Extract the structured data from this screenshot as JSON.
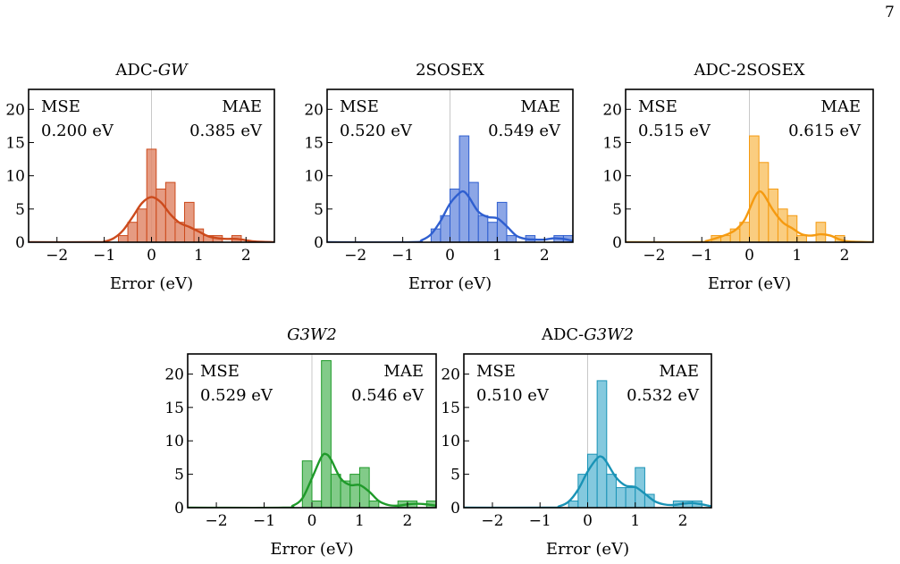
{
  "page_number": "7",
  "chart_data": [
    {
      "type": "histogram",
      "title": "ADC-GW",
      "title_parts": [
        {
          "text": "ADC-",
          "italic": false
        },
        {
          "text": "GW",
          "italic": true
        }
      ],
      "color": "#cc4a1c",
      "fill": "#e08a6c",
      "xlabel": "Error (eV)",
      "xlim": [
        -2.6,
        2.6
      ],
      "ylim": [
        0,
        23
      ],
      "xticks": [
        -2,
        -1,
        0,
        1,
        2
      ],
      "yticks": [
        0,
        5,
        10,
        15,
        20
      ],
      "xtick_labels": [
        "−2",
        "−1",
        "0",
        "1",
        "2"
      ],
      "ytick_labels": [
        "0",
        "5",
        "10",
        "15",
        "20"
      ],
      "mse_label": "MSE",
      "mse_value": "0.200 eV",
      "mae_label": "MAE",
      "mae_value": "0.385 eV",
      "bins": [
        {
          "x0": -0.7,
          "x1": -0.5,
          "count": 1
        },
        {
          "x0": -0.5,
          "x1": -0.3,
          "count": 3
        },
        {
          "x0": -0.3,
          "x1": -0.1,
          "count": 5
        },
        {
          "x0": -0.1,
          "x1": 0.1,
          "count": 14
        },
        {
          "x0": 0.1,
          "x1": 0.3,
          "count": 8
        },
        {
          "x0": 0.3,
          "x1": 0.5,
          "count": 9
        },
        {
          "x0": 0.5,
          "x1": 0.7,
          "count": 3
        },
        {
          "x0": 0.7,
          "x1": 0.9,
          "count": 6
        },
        {
          "x0": 0.9,
          "x1": 1.1,
          "count": 2
        },
        {
          "x0": 1.1,
          "x1": 1.3,
          "count": 1
        },
        {
          "x0": 1.3,
          "x1": 1.5,
          "count": 1
        },
        {
          "x0": 1.7,
          "x1": 1.9,
          "count": 1
        }
      ],
      "kde": {
        "x": [
          -2.6,
          -1.2,
          -1.0,
          -0.8,
          -0.6,
          -0.4,
          -0.2,
          0.0,
          0.2,
          0.4,
          0.6,
          0.8,
          1.0,
          1.2,
          1.4,
          1.6,
          1.8,
          2.0,
          2.2,
          2.6
        ],
        "y": [
          0,
          0,
          0.1,
          0.6,
          1.8,
          3.8,
          5.9,
          6.8,
          6.0,
          4.2,
          2.9,
          2.3,
          1.6,
          0.9,
          0.6,
          0.5,
          0.5,
          0.3,
          0.1,
          0
        ]
      }
    },
    {
      "type": "histogram",
      "title": "2SOSEX",
      "title_parts": [
        {
          "text": "2SOSEX",
          "italic": false
        }
      ],
      "color": "#2f5fd0",
      "fill": "#7897e2",
      "xlabel": "Error (eV)",
      "xlim": [
        -2.6,
        2.6
      ],
      "ylim": [
        0,
        23
      ],
      "xticks": [
        -2,
        -1,
        0,
        1,
        2
      ],
      "yticks": [
        0,
        5,
        10,
        15,
        20
      ],
      "xtick_labels": [
        "−2",
        "−1",
        "0",
        "1",
        "2"
      ],
      "ytick_labels": [
        "0",
        "5",
        "10",
        "15",
        "20"
      ],
      "mse_label": "MSE",
      "mse_value": "0.520 eV",
      "mae_label": "MAE",
      "mae_value": "0.549 eV",
      "bins": [
        {
          "x0": -0.4,
          "x1": -0.2,
          "count": 2
        },
        {
          "x0": -0.2,
          "x1": 0.0,
          "count": 4
        },
        {
          "x0": 0.0,
          "x1": 0.2,
          "count": 8
        },
        {
          "x0": 0.2,
          "x1": 0.4,
          "count": 16
        },
        {
          "x0": 0.4,
          "x1": 0.6,
          "count": 9
        },
        {
          "x0": 0.6,
          "x1": 0.8,
          "count": 4
        },
        {
          "x0": 0.8,
          "x1": 1.0,
          "count": 3
        },
        {
          "x0": 1.0,
          "x1": 1.2,
          "count": 6
        },
        {
          "x0": 1.2,
          "x1": 1.4,
          "count": 1
        },
        {
          "x0": 1.6,
          "x1": 1.8,
          "count": 1
        },
        {
          "x0": 2.2,
          "x1": 2.4,
          "count": 1
        },
        {
          "x0": 2.4,
          "x1": 2.6,
          "count": 1
        }
      ],
      "kde": {
        "x": [
          -2.6,
          -0.8,
          -0.6,
          -0.4,
          -0.2,
          0.0,
          0.2,
          0.3,
          0.4,
          0.6,
          0.8,
          1.0,
          1.2,
          1.4,
          1.6,
          1.8,
          2.0,
          2.2,
          2.4,
          2.6
        ],
        "y": [
          0,
          0,
          0.3,
          1.2,
          3.2,
          5.8,
          7.4,
          7.6,
          6.8,
          4.6,
          3.8,
          3.6,
          2.4,
          1.0,
          0.5,
          0.4,
          0.4,
          0.6,
          0.5,
          0.2
        ]
      }
    },
    {
      "type": "histogram",
      "title": "ADC-2SOSEX",
      "title_parts": [
        {
          "text": "ADC-2SOSEX",
          "italic": false
        }
      ],
      "color": "#f59a10",
      "fill": "#f9c46a",
      "xlabel": "Error (eV)",
      "xlim": [
        -2.6,
        2.6
      ],
      "ylim": [
        0,
        23
      ],
      "xticks": [
        -2,
        -1,
        0,
        1,
        2
      ],
      "yticks": [
        0,
        5,
        10,
        15,
        20
      ],
      "xtick_labels": [
        "−2",
        "−1",
        "0",
        "1",
        "2"
      ],
      "ytick_labels": [
        "0",
        "5",
        "10",
        "15",
        "20"
      ],
      "mse_label": "MSE",
      "mse_value": "0.515 eV",
      "mae_label": "MAE",
      "mae_value": "0.615 eV",
      "bins": [
        {
          "x0": -0.8,
          "x1": -0.6,
          "count": 1
        },
        {
          "x0": -0.6,
          "x1": -0.4,
          "count": 1
        },
        {
          "x0": -0.4,
          "x1": -0.2,
          "count": 2
        },
        {
          "x0": -0.2,
          "x1": 0.0,
          "count": 3
        },
        {
          "x0": 0.0,
          "x1": 0.2,
          "count": 16
        },
        {
          "x0": 0.2,
          "x1": 0.4,
          "count": 12
        },
        {
          "x0": 0.4,
          "x1": 0.6,
          "count": 8
        },
        {
          "x0": 0.6,
          "x1": 0.8,
          "count": 5
        },
        {
          "x0": 0.8,
          "x1": 1.0,
          "count": 4
        },
        {
          "x0": 1.0,
          "x1": 1.2,
          "count": 1
        },
        {
          "x0": 1.4,
          "x1": 1.6,
          "count": 3
        },
        {
          "x0": 1.8,
          "x1": 2.0,
          "count": 1
        }
      ],
      "kde": {
        "x": [
          -2.6,
          -1.1,
          -0.9,
          -0.7,
          -0.5,
          -0.3,
          -0.1,
          0.1,
          0.2,
          0.3,
          0.5,
          0.7,
          0.9,
          1.1,
          1.3,
          1.5,
          1.7,
          1.9,
          2.1,
          2.6
        ],
        "y": [
          0,
          0,
          0.2,
          0.6,
          1.1,
          1.8,
          3.4,
          6.6,
          7.6,
          7.2,
          4.8,
          3.0,
          2.1,
          1.2,
          1.0,
          1.2,
          1.0,
          0.4,
          0.1,
          0
        ]
      }
    },
    {
      "type": "histogram",
      "title": "G3W2",
      "title_parts": [
        {
          "text": "G3W2",
          "italic": true
        }
      ],
      "color": "#1f9a2a",
      "fill": "#6cc274",
      "xlabel": "Error (eV)",
      "xlim": [
        -2.6,
        2.6
      ],
      "ylim": [
        0,
        23
      ],
      "xticks": [
        -2,
        -1,
        0,
        1,
        2
      ],
      "yticks": [
        0,
        5,
        10,
        15,
        20
      ],
      "xtick_labels": [
        "−2",
        "−1",
        "0",
        "1",
        "2"
      ],
      "ytick_labels": [
        "0",
        "5",
        "10",
        "15",
        "20"
      ],
      "mse_label": "MSE",
      "mse_value": "0.529 eV",
      "mae_label": "MAE",
      "mae_value": "0.546 eV",
      "bins": [
        {
          "x0": -0.2,
          "x1": 0.0,
          "count": 7
        },
        {
          "x0": 0.0,
          "x1": 0.2,
          "count": 1
        },
        {
          "x0": 0.2,
          "x1": 0.4,
          "count": 22
        },
        {
          "x0": 0.4,
          "x1": 0.6,
          "count": 5
        },
        {
          "x0": 0.6,
          "x1": 0.8,
          "count": 4
        },
        {
          "x0": 0.8,
          "x1": 1.0,
          "count": 5
        },
        {
          "x0": 1.0,
          "x1": 1.2,
          "count": 6
        },
        {
          "x0": 1.2,
          "x1": 1.4,
          "count": 1
        },
        {
          "x0": 1.8,
          "x1": 2.0,
          "count": 1
        },
        {
          "x0": 2.0,
          "x1": 2.2,
          "count": 1
        },
        {
          "x0": 2.4,
          "x1": 2.6,
          "count": 1
        }
      ],
      "kde": {
        "x": [
          -2.6,
          -0.6,
          -0.4,
          -0.2,
          0.0,
          0.2,
          0.3,
          0.4,
          0.6,
          0.8,
          1.0,
          1.2,
          1.4,
          1.6,
          1.8,
          2.0,
          2.2,
          2.4,
          2.6
        ],
        "y": [
          0,
          0,
          0.3,
          1.4,
          4.4,
          7.6,
          8.0,
          7.2,
          4.4,
          3.4,
          3.4,
          2.4,
          1.0,
          0.4,
          0.3,
          0.5,
          0.6,
          0.5,
          0.3
        ]
      }
    },
    {
      "type": "histogram",
      "title": "ADC-G3W2",
      "title_parts": [
        {
          "text": "ADC-",
          "italic": false
        },
        {
          "text": "G3W2",
          "italic": true
        }
      ],
      "color": "#1a93b6",
      "fill": "#6fc0d8",
      "xlabel": "Error (eV)",
      "xlim": [
        -2.6,
        2.6
      ],
      "ylim": [
        0,
        23
      ],
      "xticks": [
        -2,
        -1,
        0,
        1,
        2
      ],
      "yticks": [
        0,
        5,
        10,
        15,
        20
      ],
      "xtick_labels": [
        "−2",
        "−1",
        "0",
        "1",
        "2"
      ],
      "ytick_labels": [
        "0",
        "5",
        "10",
        "15",
        "20"
      ],
      "mse_label": "MSE",
      "mse_value": "0.510 eV",
      "mae_label": "MAE",
      "mae_value": "0.532 eV",
      "bins": [
        {
          "x0": -0.4,
          "x1": -0.2,
          "count": 1
        },
        {
          "x0": -0.2,
          "x1": 0.0,
          "count": 5
        },
        {
          "x0": 0.0,
          "x1": 0.2,
          "count": 8
        },
        {
          "x0": 0.2,
          "x1": 0.4,
          "count": 19
        },
        {
          "x0": 0.4,
          "x1": 0.6,
          "count": 5
        },
        {
          "x0": 0.6,
          "x1": 0.8,
          "count": 3
        },
        {
          "x0": 0.8,
          "x1": 1.0,
          "count": 3
        },
        {
          "x0": 1.0,
          "x1": 1.2,
          "count": 6
        },
        {
          "x0": 1.2,
          "x1": 1.4,
          "count": 2
        },
        {
          "x0": 1.8,
          "x1": 2.0,
          "count": 1
        },
        {
          "x0": 2.0,
          "x1": 2.2,
          "count": 1
        },
        {
          "x0": 2.2,
          "x1": 2.4,
          "count": 1
        }
      ],
      "kde": {
        "x": [
          -2.6,
          -0.8,
          -0.6,
          -0.4,
          -0.2,
          0.0,
          0.2,
          0.3,
          0.4,
          0.6,
          0.8,
          1.0,
          1.2,
          1.4,
          1.6,
          1.8,
          2.0,
          2.2,
          2.4,
          2.6
        ],
        "y": [
          0,
          0,
          0.2,
          0.9,
          2.7,
          5.4,
          7.4,
          7.6,
          6.8,
          4.5,
          3.3,
          3.1,
          2.1,
          1.0,
          0.5,
          0.4,
          0.6,
          0.7,
          0.5,
          0.2
        ]
      }
    }
  ]
}
